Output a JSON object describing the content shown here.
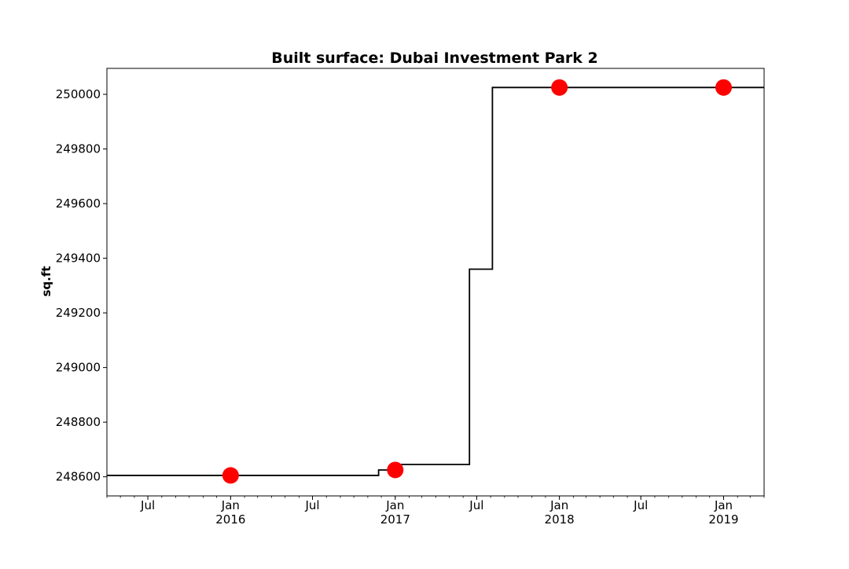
{
  "chart_data": {
    "type": "line",
    "title": "Built surface: Dubai Investment Park 2",
    "xlabel": "",
    "ylabel": "sq.ft",
    "xlim": [
      "2015-04-01",
      "2019-04-01"
    ],
    "ylim": [
      248530,
      250095
    ],
    "yticks": [
      248600,
      248800,
      249000,
      249200,
      249400,
      249600,
      249800,
      250000
    ],
    "xticks": [
      {
        "date": "2015-07-01",
        "label": "Jul",
        "sublabel": ""
      },
      {
        "date": "2016-01-01",
        "label": "Jan",
        "sublabel": "2016"
      },
      {
        "date": "2016-07-01",
        "label": "Jul",
        "sublabel": ""
      },
      {
        "date": "2017-01-01",
        "label": "Jan",
        "sublabel": "2017"
      },
      {
        "date": "2017-07-01",
        "label": "Jul",
        "sublabel": ""
      },
      {
        "date": "2018-01-01",
        "label": "Jan",
        "sublabel": "2018"
      },
      {
        "date": "2018-07-01",
        "label": "Jul",
        "sublabel": ""
      },
      {
        "date": "2019-01-01",
        "label": "Jan",
        "sublabel": "2019"
      }
    ],
    "grid": false,
    "series": [
      {
        "style": "step",
        "color": "#000000",
        "points": [
          {
            "x": "2015-04-01",
            "y": 248605
          },
          {
            "x": "2016-11-25",
            "y": 248625
          },
          {
            "x": "2016-12-25",
            "y": 248645
          },
          {
            "x": "2017-06-15",
            "y": 249360
          },
          {
            "x": "2017-08-05",
            "y": 250025
          },
          {
            "x": "2019-04-01",
            "y": 250025
          }
        ]
      },
      {
        "style": "markers",
        "color": "#ff0000",
        "points": [
          {
            "x": "2016-01-01",
            "y": 248605
          },
          {
            "x": "2017-01-01",
            "y": 248625
          },
          {
            "x": "2018-01-01",
            "y": 250025
          },
          {
            "x": "2019-01-01",
            "y": 250025
          }
        ]
      }
    ]
  }
}
